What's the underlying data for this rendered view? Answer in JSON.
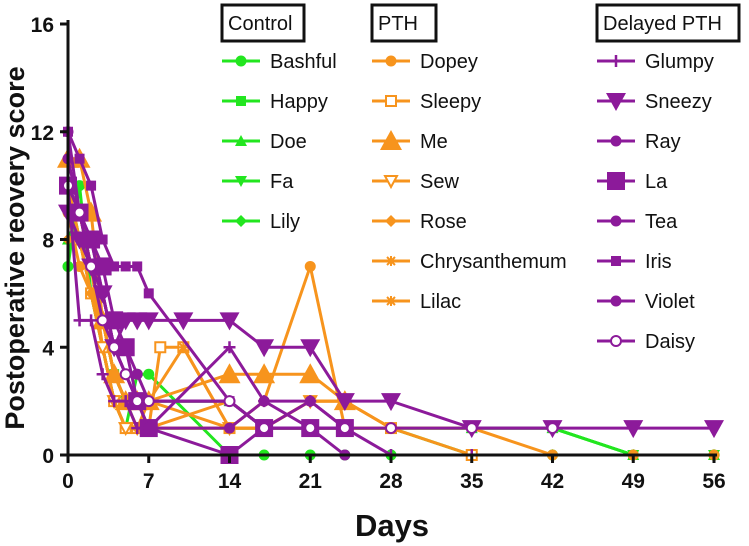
{
  "chart_data": {
    "type": "line",
    "title": "",
    "xlabel": "Days",
    "ylabel": "Postoperative reovery score",
    "xlim": [
      0,
      56
    ],
    "ylim": [
      0,
      16
    ],
    "xticks": [
      0,
      7,
      14,
      21,
      28,
      35,
      42,
      49,
      56
    ],
    "yticks": [
      0,
      4,
      8,
      12,
      16
    ],
    "xtick_labels": [
      "0",
      "7",
      "14",
      "21",
      "28",
      "35",
      "42",
      "49",
      "56"
    ],
    "ytick_labels": [
      "0",
      "4",
      "8",
      "12",
      "16"
    ],
    "grid": false,
    "colors": {
      "Control": "#22e61f",
      "PTH": "#f7941d",
      "Delayed PTH": "#8c1a9a"
    },
    "groups": [
      {
        "name": "Control",
        "series": [
          {
            "name": "Bashful",
            "marker": "circle",
            "x": [
              0,
              1,
              2,
              3,
              4,
              5,
              6,
              7,
              14,
              17,
              21,
              24,
              28,
              35,
              42,
              49,
              56
            ],
            "y": [
              7,
              10,
              6,
              4,
              2,
              1,
              3,
              3,
              0,
              0,
              0,
              0,
              0,
              0,
              0,
              0,
              0
            ]
          },
          {
            "name": "Happy",
            "marker": "square",
            "x": [
              0,
              1,
              2,
              3,
              4,
              5,
              6,
              7,
              14,
              17,
              21,
              24,
              28,
              35,
              42,
              49,
              56
            ],
            "y": [
              10,
              9,
              7,
              5,
              3,
              2,
              2,
              1,
              1,
              1,
              1,
              1,
              1,
              1,
              1,
              0,
              0
            ]
          },
          {
            "name": "Doe",
            "marker": "triangle-up",
            "x": [
              0,
              1,
              2,
              3,
              4,
              5,
              6,
              7,
              14,
              17,
              21,
              24,
              28,
              35,
              42,
              49,
              56
            ],
            "y": [
              8,
              9,
              7,
              5,
              3,
              2,
              2,
              2,
              2,
              1,
              1,
              1,
              1,
              1,
              1,
              0,
              0
            ]
          },
          {
            "name": "Fa",
            "marker": "triangle-down",
            "x": [
              0,
              1,
              2,
              3,
              4,
              5,
              6,
              7,
              14,
              17,
              21,
              24,
              28,
              35,
              42,
              49,
              56
            ],
            "y": [
              9,
              8,
              6,
              4,
              2,
              2,
              1,
              1,
              1,
              1,
              1,
              1,
              1,
              1,
              1,
              0,
              0
            ]
          },
          {
            "name": "Lily",
            "marker": "diamond",
            "x": [
              0,
              1,
              2,
              3,
              4,
              5,
              6,
              7,
              14,
              17,
              21,
              24,
              28,
              35,
              42,
              49,
              56
            ],
            "y": [
              10,
              8,
              7,
              5,
              3,
              2,
              2,
              2,
              2,
              1,
              1,
              1,
              1,
              0,
              0,
              0,
              0
            ]
          }
        ]
      },
      {
        "name": "PTH",
        "series": [
          {
            "name": "Dopey",
            "marker": "circle",
            "x": [
              0,
              1,
              2,
              3,
              4,
              5,
              6,
              7,
              14,
              17,
              21,
              24,
              28,
              35,
              42,
              49,
              56
            ],
            "y": [
              9,
              7,
              6,
              4,
              2,
              1,
              1,
              1,
              1,
              2,
              7,
              1,
              1,
              1,
              0,
              0,
              0
            ]
          },
          {
            "name": "Sleepy",
            "marker": "square-open",
            "x": [
              0,
              1,
              2,
              3,
              4,
              5,
              6,
              7,
              8,
              10,
              14,
              17,
              21,
              24,
              28,
              35
            ],
            "y": [
              10,
              8,
              6,
              4,
              2,
              1,
              1,
              1,
              4,
              4,
              1,
              1,
              1,
              1,
              1,
              0
            ]
          },
          {
            "name": "Me",
            "marker": "triangle-up-big",
            "x": [
              0,
              1,
              2,
              3,
              4,
              5,
              6,
              7,
              14,
              17,
              21,
              24
            ],
            "y": [
              11,
              11,
              9,
              5,
              3,
              2,
              2,
              2,
              3,
              3,
              3,
              2
            ]
          },
          {
            "name": "Sew",
            "marker": "triangle-down-open",
            "x": [
              0,
              1,
              2,
              3,
              4,
              5,
              6,
              7,
              14,
              17,
              21,
              24
            ],
            "y": [
              10,
              9,
              7,
              4,
              2,
              1,
              1,
              1,
              1,
              1,
              2,
              2
            ]
          },
          {
            "name": "Rose",
            "marker": "diamond",
            "x": [
              0,
              1,
              2,
              3,
              4,
              5,
              6,
              7,
              14,
              17,
              21,
              24,
              28
            ],
            "y": [
              8,
              8,
              6,
              5,
              3,
              2,
              1,
              2,
              1,
              1,
              2,
              2,
              1
            ]
          },
          {
            "name": "Chrysanthemum",
            "marker": "star",
            "x": [
              0,
              1,
              2,
              3,
              4,
              5,
              6,
              7,
              10,
              14,
              17,
              21,
              24,
              28
            ],
            "y": [
              9,
              9,
              7,
              5,
              3,
              2,
              2,
              2,
              4,
              1,
              1,
              2,
              2,
              1
            ]
          },
          {
            "name": "Lilac",
            "marker": "asterisk",
            "x": [
              0,
              1,
              2,
              3,
              4,
              5,
              6,
              7,
              14,
              17,
              21,
              24,
              28
            ],
            "y": [
              10,
              9,
              7,
              5,
              3,
              2,
              2,
              1,
              2,
              1,
              2,
              2,
              1
            ]
          }
        ]
      },
      {
        "name": "Delayed PTH",
        "series": [
          {
            "name": "Glumpy",
            "marker": "plus",
            "x": [
              0,
              1,
              2,
              3,
              4,
              5,
              6,
              7,
              14,
              17,
              21,
              24,
              28,
              35
            ],
            "y": [
              10,
              5,
              5,
              3,
              2,
              2,
              1,
              1,
              4,
              2,
              2,
              1,
              0,
              0
            ]
          },
          {
            "name": "Sneezy",
            "marker": "triangle-down-big",
            "x": [
              0,
              1,
              2,
              3,
              4,
              5,
              6,
              7,
              10,
              14,
              17,
              21,
              24,
              28,
              35,
              42,
              49,
              56
            ],
            "y": [
              9,
              8,
              7,
              6,
              4,
              5,
              5,
              5,
              5,
              5,
              4,
              4,
              2,
              2,
              1,
              1,
              1,
              1
            ]
          },
          {
            "name": "Ray",
            "marker": "circle",
            "x": [
              0,
              1,
              2,
              3,
              4,
              5,
              6,
              7,
              14,
              17,
              21,
              24
            ],
            "y": [
              12,
              9,
              7,
              6,
              4,
              4,
              3,
              2,
              2,
              1,
              2,
              1
            ]
          },
          {
            "name": "La",
            "marker": "square-big",
            "x": [
              0,
              1,
              2,
              3,
              4,
              5,
              6,
              7,
              14,
              17,
              21,
              24
            ],
            "y": [
              10,
              9,
              8,
              7,
              5,
              4,
              2,
              1,
              0,
              1,
              1,
              1
            ]
          },
          {
            "name": "Tea",
            "marker": "circle",
            "x": [
              0,
              1,
              2,
              3,
              4,
              5,
              6,
              7,
              14,
              17,
              21,
              24
            ],
            "y": [
              11,
              9,
              8,
              6,
              4,
              3,
              2,
              1,
              1,
              2,
              1,
              0
            ]
          },
          {
            "name": "Iris",
            "marker": "square",
            "x": [
              0,
              1,
              2,
              3,
              4,
              5,
              6,
              7,
              14,
              17,
              21
            ],
            "y": [
              12,
              11,
              10,
              8,
              7,
              7,
              7,
              6,
              2,
              1,
              1
            ]
          },
          {
            "name": "Violet",
            "marker": "circle",
            "x": [
              0,
              1,
              2,
              3,
              4,
              5,
              6,
              7,
              14,
              17,
              21,
              24
            ],
            "y": [
              10,
              9,
              8,
              6,
              4,
              3,
              2,
              2,
              2,
              1,
              1,
              1
            ]
          },
          {
            "name": "Daisy",
            "marker": "circle-open-cross",
            "x": [
              0,
              1,
              2,
              3,
              4,
              5,
              6,
              7,
              14,
              17,
              21,
              24,
              28,
              35,
              42
            ],
            "y": [
              10,
              9,
              7,
              5,
              4,
              3,
              2,
              2,
              2,
              1,
              1,
              1,
              1,
              1,
              1
            ]
          }
        ]
      }
    ]
  }
}
